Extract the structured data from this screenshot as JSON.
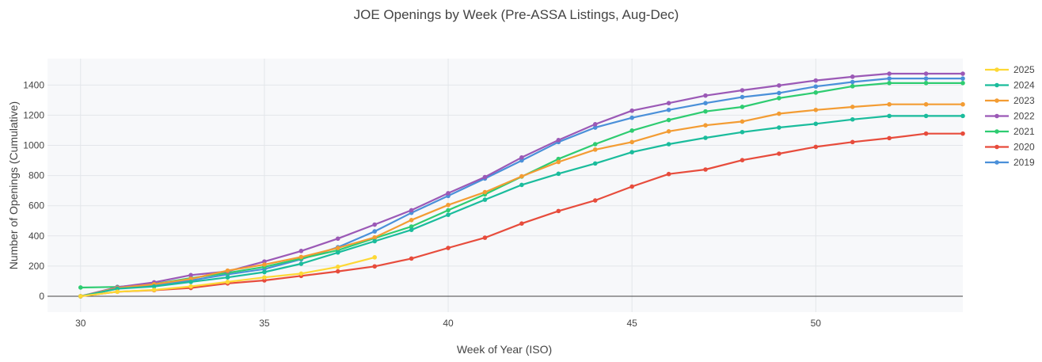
{
  "chart_data": {
    "type": "line",
    "title": "JOE Openings by Week (Pre-ASSA Listings, Aug-Dec)",
    "xlabel": "Week of Year (ISO)",
    "ylabel": "Number of Openings (Cumulative)",
    "xlim": [
      29.1,
      54.0
    ],
    "ylim": [
      -105,
      1575
    ],
    "xticks": [
      30,
      35,
      40,
      45,
      50
    ],
    "yticks": [
      0,
      200,
      400,
      600,
      800,
      1000,
      1200,
      1400
    ],
    "grid": true,
    "legend_position": "right",
    "series": [
      {
        "name": "2025",
        "color": "#fdd835",
        "x": [
          30,
          31,
          32,
          33,
          34,
          35,
          36,
          37,
          38
        ],
        "y": [
          0,
          30,
          42,
          65,
          95,
          125,
          150,
          195,
          258
        ]
      },
      {
        "name": "2024",
        "color": "#1abc9c",
        "x": [
          30,
          31,
          32,
          33,
          34,
          35,
          36,
          37,
          38,
          39,
          40,
          41,
          42,
          43,
          44,
          45,
          46,
          47,
          48,
          49,
          50,
          51,
          52,
          53,
          54
        ],
        "y": [
          0,
          50,
          65,
          95,
          125,
          160,
          215,
          290,
          365,
          440,
          540,
          640,
          738,
          812,
          880,
          955,
          1008,
          1050,
          1088,
          1118,
          1143,
          1172,
          1195,
          1195,
          1195
        ]
      },
      {
        "name": "2023",
        "color": "#f39c33",
        "x": [
          30,
          31,
          32,
          33,
          34,
          35,
          36,
          37,
          38,
          39,
          40,
          41,
          42,
          43,
          44,
          45,
          46,
          47,
          48,
          49,
          50,
          51,
          52,
          53,
          54
        ],
        "y": [
          0,
          55,
          80,
          115,
          170,
          210,
          260,
          320,
          390,
          505,
          605,
          690,
          795,
          890,
          972,
          1022,
          1093,
          1133,
          1158,
          1210,
          1235,
          1255,
          1272,
          1272,
          1272
        ]
      },
      {
        "name": "2022",
        "color": "#9b59b6",
        "x": [
          30,
          31,
          32,
          33,
          34,
          35,
          36,
          37,
          38,
          39,
          40,
          41,
          42,
          43,
          44,
          45,
          46,
          47,
          48,
          49,
          50,
          51,
          52,
          53,
          54
        ],
        "y": [
          0,
          60,
          92,
          140,
          165,
          230,
          300,
          382,
          475,
          570,
          683,
          790,
          920,
          1035,
          1140,
          1230,
          1280,
          1330,
          1365,
          1397,
          1430,
          1455,
          1475,
          1475,
          1475
        ]
      },
      {
        "name": "2021",
        "color": "#2ecc71",
        "x": [
          30,
          31,
          32,
          33,
          34,
          35,
          36,
          37,
          38,
          39,
          40,
          41,
          42,
          43,
          44,
          45,
          46,
          47,
          48,
          49,
          50,
          51,
          52,
          53,
          54
        ],
        "y": [
          58,
          62,
          82,
          120,
          155,
          195,
          250,
          305,
          385,
          462,
          570,
          675,
          793,
          910,
          1008,
          1098,
          1168,
          1225,
          1255,
          1313,
          1350,
          1392,
          1413,
          1413,
          1413
        ]
      },
      {
        "name": "2020",
        "color": "#e74c3c",
        "x": [
          30,
          31,
          32,
          33,
          34,
          35,
          36,
          37,
          38,
          39,
          40,
          41,
          42,
          43,
          44,
          45,
          46,
          47,
          48,
          49,
          50,
          51,
          52,
          53,
          54
        ],
        "y": [
          0,
          30,
          40,
          55,
          85,
          105,
          135,
          165,
          198,
          250,
          320,
          388,
          482,
          565,
          635,
          727,
          810,
          840,
          902,
          945,
          990,
          1022,
          1048,
          1078,
          1078
        ]
      },
      {
        "name": "2019",
        "color": "#4a90d9",
        "x": [
          30,
          31,
          32,
          33,
          34,
          35,
          36,
          37,
          38,
          39,
          40,
          41,
          42,
          43,
          44,
          45,
          46,
          47,
          48,
          49,
          50,
          51,
          52,
          53,
          54
        ],
        "y": [
          0,
          55,
          75,
          105,
          145,
          180,
          245,
          325,
          430,
          553,
          665,
          780,
          900,
          1022,
          1118,
          1183,
          1235,
          1280,
          1320,
          1347,
          1390,
          1420,
          1443,
          1443,
          1443
        ]
      }
    ]
  }
}
